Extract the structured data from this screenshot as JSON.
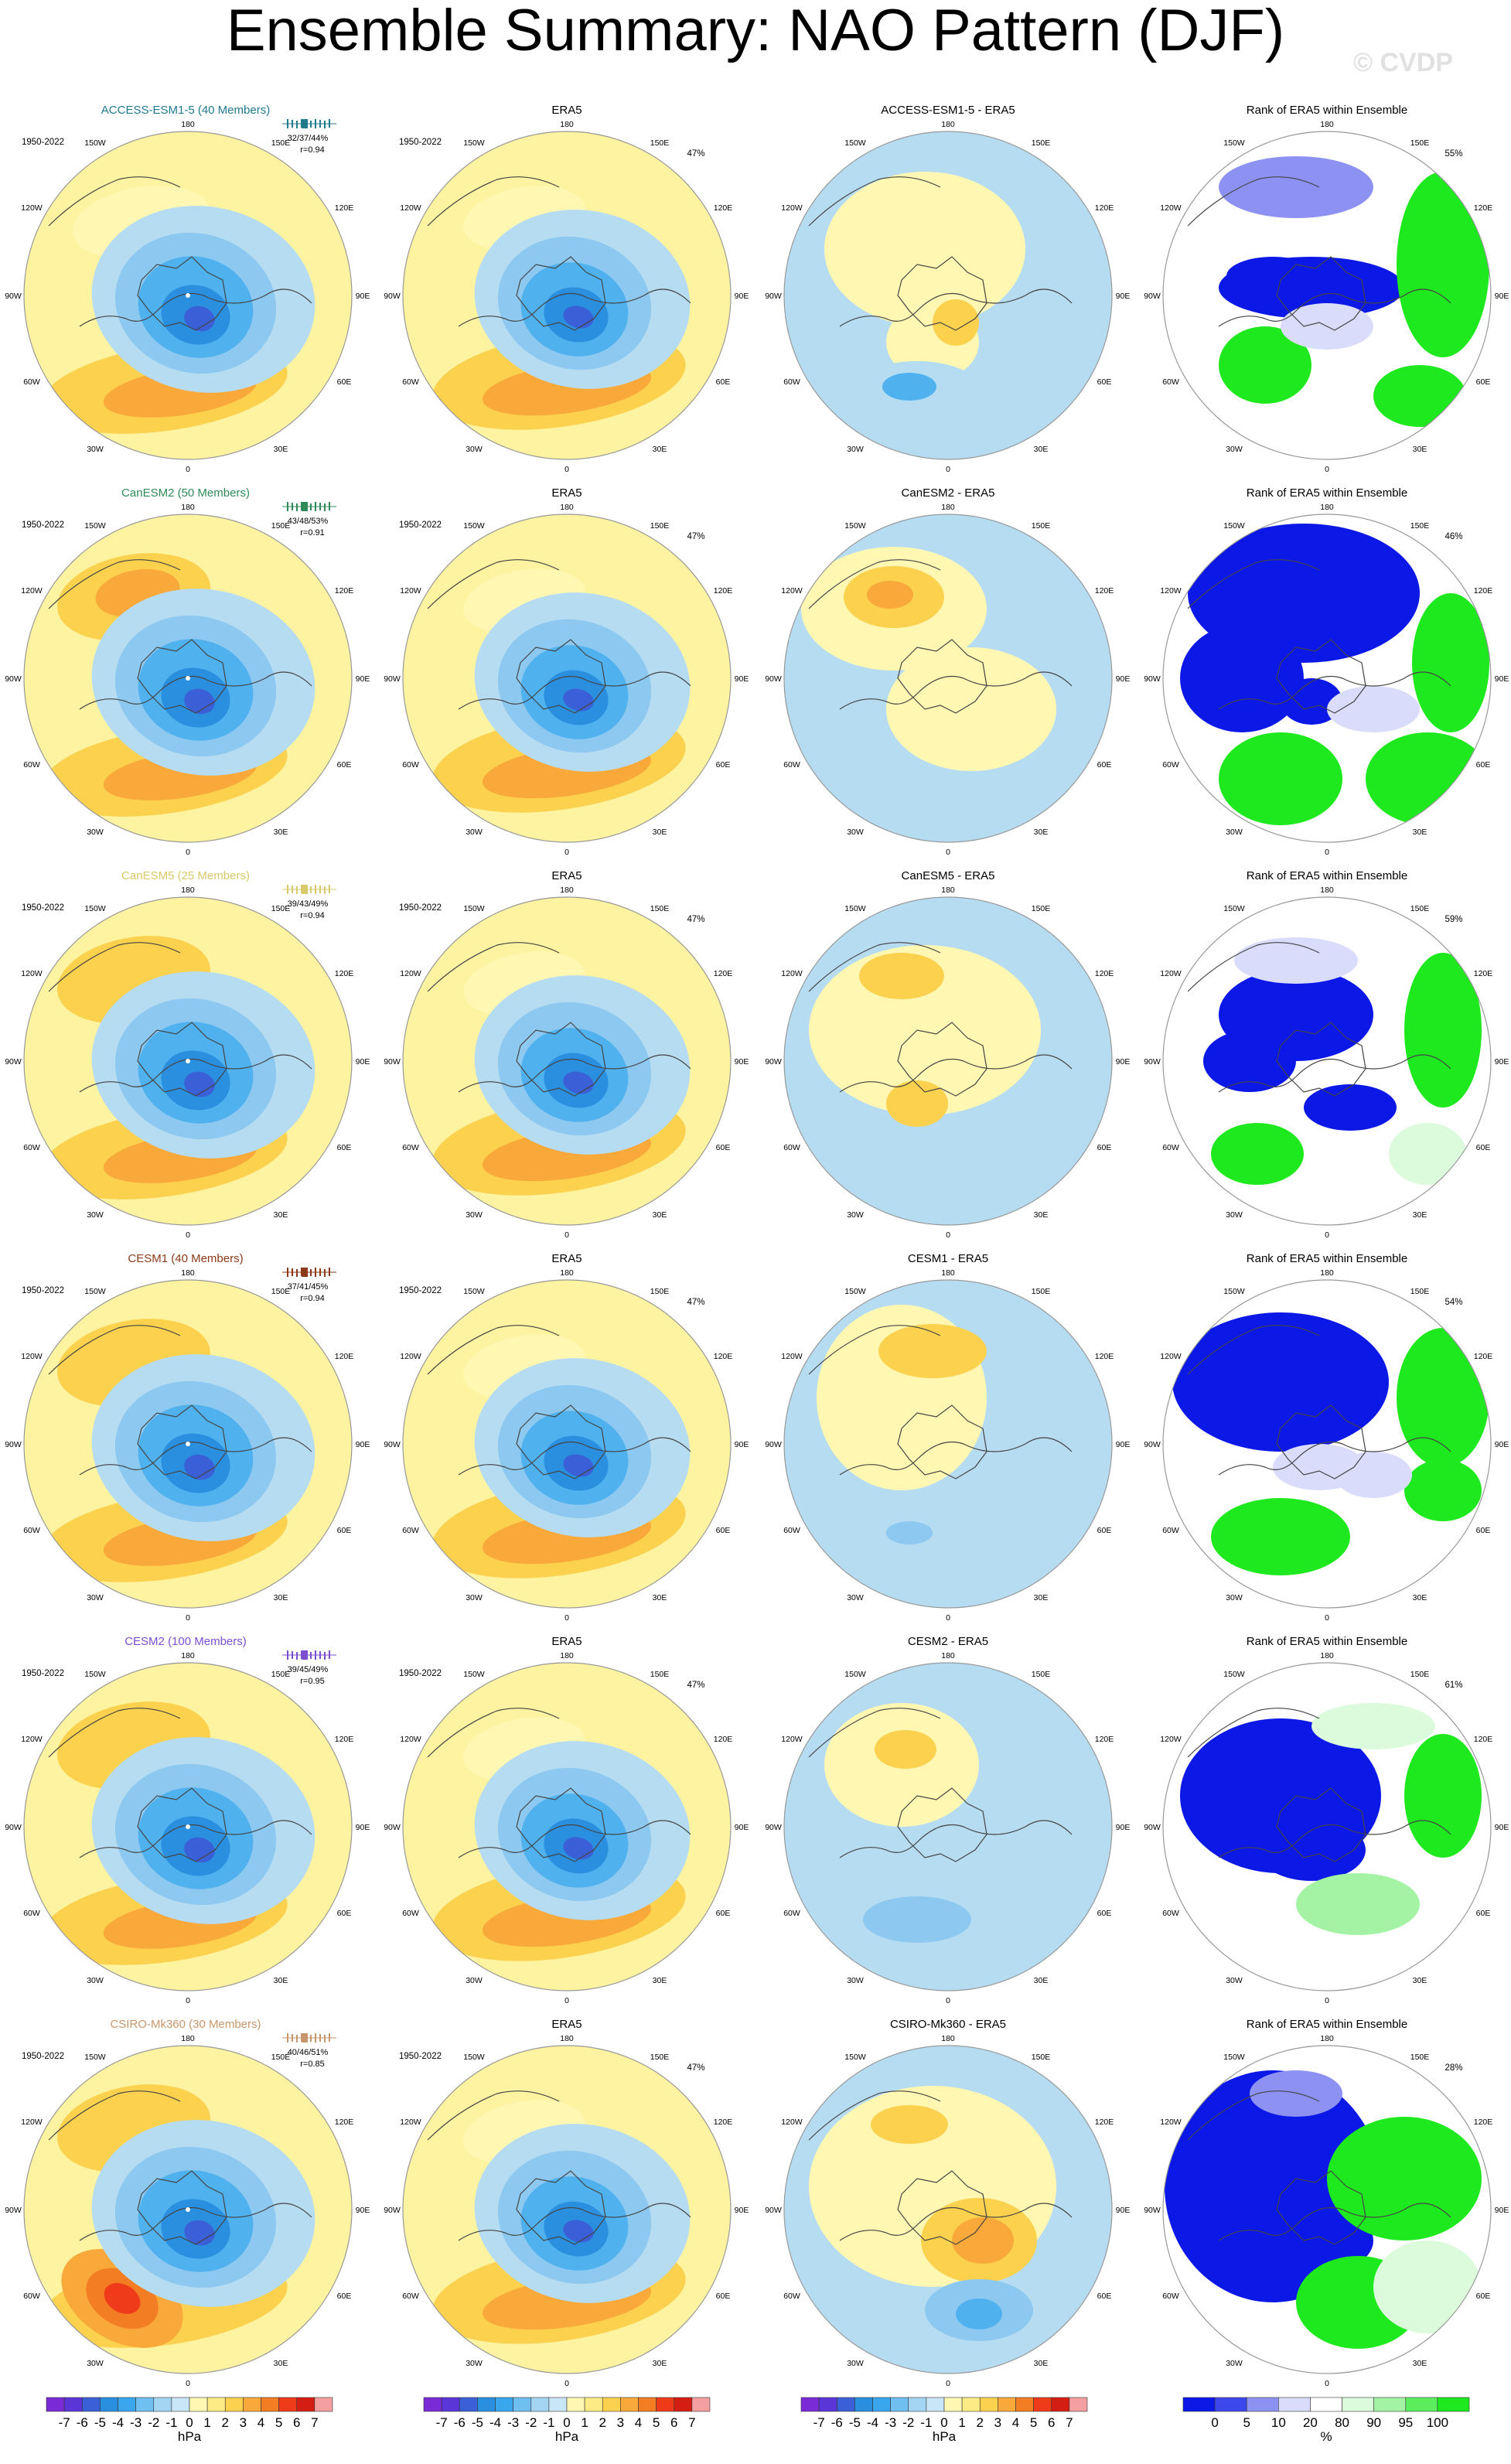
{
  "title": "Ensemble Summary: NAO Pattern (DJF)",
  "watermark": "© CVDP",
  "years": "1950-2022",
  "obs_title": "ERA5",
  "obs_pct": "47%",
  "rank_title": "Rank of ERA5 within Ensemble",
  "lon_labels": {
    "top": "180",
    "bottom": "0",
    "upper_left": "150W",
    "upper_right": "150E",
    "left_high": "120W",
    "right_high": "120E",
    "left_mid": "90W",
    "right_mid": "90E",
    "left_low": "60W",
    "right_low": "60E",
    "lower_left": "30W",
    "lower_right": "30E"
  },
  "colors": {
    "yellow": "#fdf3a0",
    "lightyellow": "#fff7b2",
    "orange1": "#fbd14e",
    "orange2": "#f9a83a",
    "orange3": "#f27d22",
    "red1": "#ef3b1a",
    "blue0": "#b6dcf2",
    "blue1": "#8cc8f0",
    "blue2": "#4fb1ee",
    "blue3": "#2b8fe0",
    "blue4": "#3a5fd6",
    "blue5": "#4b3bc4",
    "rank_blue": "#0b18e6",
    "rank_lblue": "#8d92f2",
    "rank_vlblue": "#d9dcfb",
    "rank_green": "#1ee81e",
    "rank_lgreen": "#a4f3a4",
    "rank_vlgreen": "#dcfadc"
  },
  "models": [
    {
      "name": "ACCESS-ESM1-5 (40 Members)",
      "diff_title": "ACCESS-ESM1-5 - ERA5",
      "stats": "32/37/44%",
      "r": "r=0.94",
      "rank_pct": "55%",
      "color": "#1f7a8c"
    },
    {
      "name": "CanESM2 (50 Members)",
      "diff_title": "CanESM2 - ERA5",
      "stats": "43/48/53%",
      "r": "r=0.91",
      "rank_pct": "46%",
      "color": "#2e8b57"
    },
    {
      "name": "CanESM5 (25 Members)",
      "diff_title": "CanESM5 - ERA5",
      "stats": "39/43/49%",
      "r": "r=0.94",
      "rank_pct": "59%",
      "color": "#d8c96a"
    },
    {
      "name": "CESM1 (40 Members)",
      "diff_title": "CESM1 - ERA5",
      "stats": "37/41/45%",
      "r": "r=0.94",
      "rank_pct": "54%",
      "color": "#8b3a1a"
    },
    {
      "name": "CESM2 (100 Members)",
      "diff_title": "CESM2 - ERA5",
      "stats": "39/45/49%",
      "r": "r=0.95",
      "rank_pct": "61%",
      "color": "#7b4fd0"
    },
    {
      "name": "CSIRO-Mk360 (30 Members)",
      "diff_title": "CSIRO-Mk360 - ERA5",
      "stats": "40/46/51%",
      "r": "r=0.85",
      "rank_pct": "28%",
      "color": "#c8966a"
    }
  ],
  "colorbar": {
    "unit": "hPa",
    "labels": [
      "-7",
      "-6",
      "-5",
      "-4",
      "-3",
      "-2",
      "-1",
      "0",
      "1",
      "2",
      "3",
      "4",
      "5",
      "6",
      "7"
    ],
    "colors": [
      "#7a2bd6",
      "#5a36d8",
      "#3a5fd6",
      "#2b8fe0",
      "#3aa6ee",
      "#6fc0f0",
      "#a3d5f3",
      "#c9e6f6",
      "#fff7b2",
      "#fdeb85",
      "#fbd14e",
      "#f9a83a",
      "#f27d22",
      "#ef3b1a",
      "#d41e14",
      "#f5a0a0"
    ]
  },
  "rank_colorbar": {
    "unit": "%",
    "labels": [
      "0",
      "5",
      "10",
      "20",
      "80",
      "90",
      "95",
      "100"
    ],
    "colors": [
      "#0b18e6",
      "#3d48ec",
      "#8d92f2",
      "#d9dcfb",
      "#ffffff",
      "#dcfadc",
      "#a4f3a4",
      "#5ced5c",
      "#1ee81e"
    ]
  }
}
